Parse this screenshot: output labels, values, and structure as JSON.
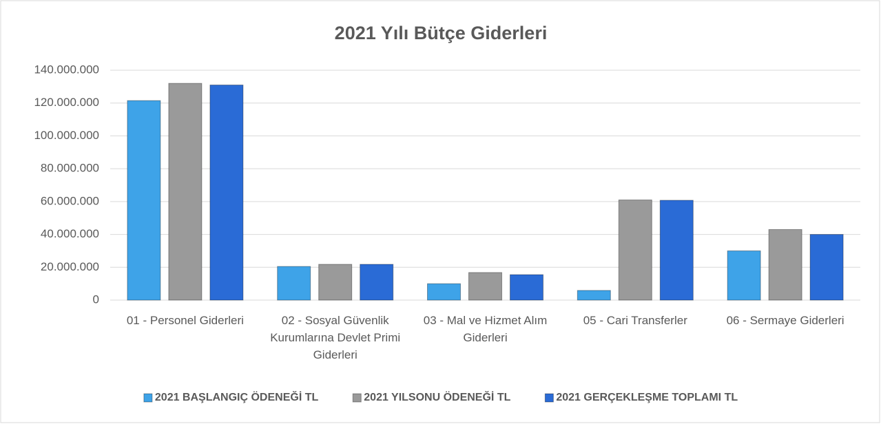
{
  "chart_data": {
    "type": "bar",
    "title": "2021 Yılı Bütçe Giderleri",
    "categories": [
      "01 - Personel Giderleri",
      "02 - Sosyal Güvenlik Kurumlarına Devlet Primi Giderleri",
      "03 - Mal ve Hizmet Alım Giderleri",
      "05 - Cari Transferler",
      "06 - Sermaye Giderleri"
    ],
    "series": [
      {
        "name": "2021 BAŞLANGIÇ ÖDENEĞİ TL",
        "color": "#3ea3e8",
        "values": [
          121500000,
          20500000,
          10000000,
          5900000,
          30000000
        ]
      },
      {
        "name": "2021 YILSONU ÖDENEĞİ TL",
        "color": "#9a9a9a",
        "values": [
          132000000,
          21800000,
          16800000,
          61000000,
          43000000
        ]
      },
      {
        "name": "2021 GERÇEKLEŞME TOPLAMI TL",
        "color": "#2a6bd6",
        "values": [
          131000000,
          21800000,
          15500000,
          60800000,
          40000000
        ]
      }
    ],
    "ylim": [
      0,
      140000000
    ],
    "yticks": [
      0,
      {
        "value": 20000000,
        "label": "20.000.000"
      },
      {
        "value": 40000000,
        "label": "40.000.000"
      },
      {
        "value": 60000000,
        "label": "60.000.000"
      },
      {
        "value": 80000000,
        "label": "80.000.000"
      },
      {
        "value": 100000000,
        "label": "100.000.000"
      },
      {
        "value": 120000000,
        "label": "120.000.000"
      },
      {
        "value": 140000000,
        "label": "140.000.000"
      }
    ],
    "grid": true,
    "legend": "bottom"
  }
}
